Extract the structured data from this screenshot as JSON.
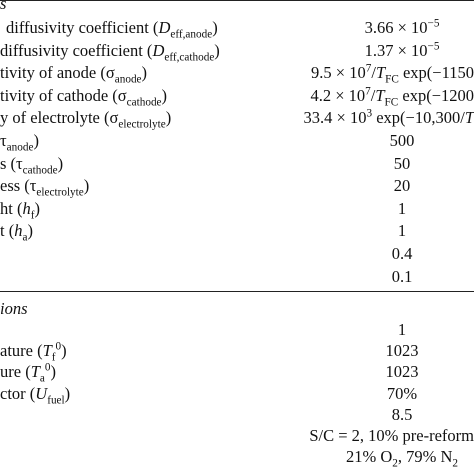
{
  "section1": {
    "heading": "s",
    "rows": [
      {
        "p": {
          "pre": " diffusivity coefficient (",
          "sym": "D",
          "sub": "eff,anode",
          "post": ")"
        },
        "v": {
          "pre": "3.66 × 10",
          "sup": "−5"
        }
      },
      {
        "p": {
          "pre": "diffusivity coefficient (",
          "sym": "D",
          "sub": "eff,cathode",
          "post": ")"
        },
        "v": {
          "pre": "1.37 × 10",
          "sup": "−5"
        }
      },
      {
        "p": {
          "pre": "tivity of anode (σ",
          "sub": "anode",
          "post": ")"
        },
        "v": {
          "pre": "9.5 × 10",
          "sup": "7",
          "mid": "/",
          "sym": "T",
          "sub": "FC",
          "post": " exp(−1150"
        }
      },
      {
        "p": {
          "pre": "tivity of cathode (σ",
          "sub": "cathode",
          "post": ")"
        },
        "v": {
          "pre": "4.2 × 10",
          "sup": "7",
          "mid": "/",
          "sym": "T",
          "sub": "FC",
          "post": " exp(−1200"
        }
      },
      {
        "p": {
          "pre": "y of electrolyte (σ",
          "sub": "electrolyte",
          "post": ")"
        },
        "v": {
          "pre": "33.4 × 10",
          "sup": "3",
          "mid": " exp(−10,300/",
          "sym": "T"
        }
      },
      {
        "p": {
          "pre": "τ",
          "sub": "anode",
          "post": ")"
        },
        "v": {
          "pre": "500"
        }
      },
      {
        "p": {
          "pre": "s (τ",
          "sub": "cathode",
          "post": ")"
        },
        "v": {
          "pre": "50"
        }
      },
      {
        "p": {
          "pre": "ess (τ",
          "sub": "electrolyte",
          "post": ")"
        },
        "v": {
          "pre": "20"
        }
      },
      {
        "p": {
          "pre": "ht (",
          "sym": "h",
          "sub": "f",
          "post": ")"
        },
        "v": {
          "pre": "1"
        }
      },
      {
        "p": {
          "pre": "t (",
          "sym": "h",
          "sub": "a",
          "post": ")"
        },
        "v": {
          "pre": "1"
        }
      },
      {
        "p": {},
        "v": {
          "pre": "0.4"
        }
      },
      {
        "p": {},
        "v": {
          "pre": "0.1"
        }
      }
    ]
  },
  "section2": {
    "heading": "ions",
    "rows": [
      {
        "p": {},
        "v": {
          "pre": "1"
        }
      },
      {
        "p": {
          "pre": "ature (",
          "sym": "T",
          "sub": "f",
          "sup": "0",
          "post": ")"
        },
        "v": {
          "pre": "1023"
        }
      },
      {
        "p": {
          "pre": "ure (",
          "sym": "T",
          "sub": "a",
          "sup": "0",
          "post": ")"
        },
        "v": {
          "pre": "1023"
        }
      },
      {
        "p": {
          "pre": "ctor (",
          "sym": "U",
          "sub": "fuel",
          "post": ")"
        },
        "v": {
          "pre": "70%"
        }
      },
      {
        "p": {},
        "v": {
          "pre": "8.5"
        }
      },
      {
        "p": {},
        "v": {
          "pre": "S/C = 2, 10% pre-reform"
        }
      },
      {
        "p": {},
        "v": {
          "pre": "21% O",
          "sub": "2",
          "post": ", 79% N",
          "sub2": "2"
        }
      }
    ]
  }
}
